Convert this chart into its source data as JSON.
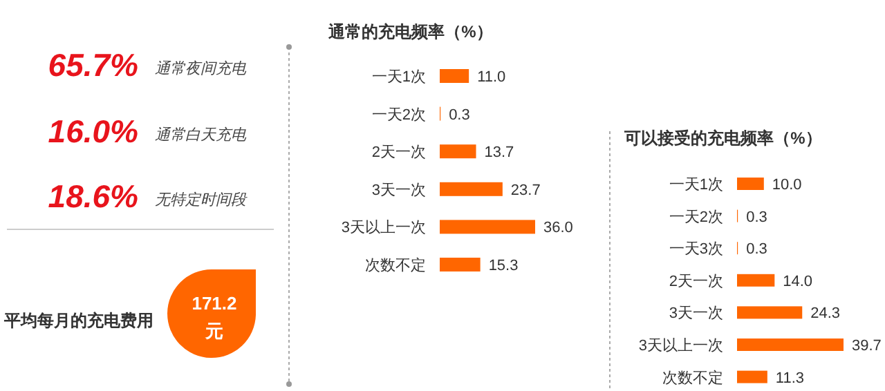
{
  "chart_data": [
    {
      "type": "other",
      "annotations": [
        "65.7%",
        "通常夜间充电",
        "16.0%",
        "通常白天充电",
        "18.6%",
        "无特定时间段",
        "平均每月的充电费用",
        "171.2",
        "元"
      ]
    },
    {
      "type": "bar",
      "orientation": "horizontal",
      "title": "通常的充电频率（%）",
      "categories": [
        "一天1次",
        "一天2次",
        "2天一次",
        "3天一次",
        "3天以上一次",
        "次数不定"
      ],
      "values": [
        11.0,
        0.3,
        13.7,
        23.7,
        36.0,
        15.3
      ],
      "color": "#ff6600",
      "value_labels": [
        "11.0",
        "0.3",
        "13.7",
        "23.7",
        "36.0",
        "15.3"
      ]
    },
    {
      "type": "bar",
      "orientation": "horizontal",
      "title": "可以接受的充电频率（%）",
      "categories": [
        "一天1次",
        "一天2次",
        "一天3次",
        "2天一次",
        "3天一次",
        "3天以上一次",
        "次数不定"
      ],
      "values": [
        10.0,
        0.3,
        0.3,
        14.0,
        24.3,
        39.7,
        11.3
      ],
      "color": "#ff6600",
      "value_labels": [
        "10.0",
        "0.3",
        "0.3",
        "14.0",
        "24.3",
        "39.7",
        "11.3"
      ]
    }
  ]
}
